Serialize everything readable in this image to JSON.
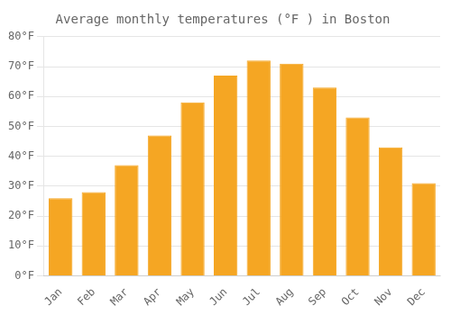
{
  "chart_data": {
    "type": "bar",
    "title": "Average monthly temperatures (°F ) in Boston",
    "categories": [
      "Jan",
      "Feb",
      "Mar",
      "Apr",
      "May",
      "Jun",
      "Jul",
      "Aug",
      "Sep",
      "Oct",
      "Nov",
      "Dec"
    ],
    "values": [
      26,
      28,
      37,
      47,
      58,
      67,
      72,
      71,
      63,
      53,
      43,
      31
    ],
    "color": "#F5A623",
    "ylim": [
      0,
      80
    ],
    "yticks": [
      {
        "value": 0,
        "label": "0°F"
      },
      {
        "value": 10,
        "label": "10°F"
      },
      {
        "value": 20,
        "label": "20°F"
      },
      {
        "value": 30,
        "label": "30°F"
      },
      {
        "value": 40,
        "label": "40°F"
      },
      {
        "value": 50,
        "label": "50°F"
      },
      {
        "value": 60,
        "label": "60°F"
      },
      {
        "value": 70,
        "label": "70°F"
      },
      {
        "value": 80,
        "label": "80°F"
      }
    ],
    "grid": true
  }
}
